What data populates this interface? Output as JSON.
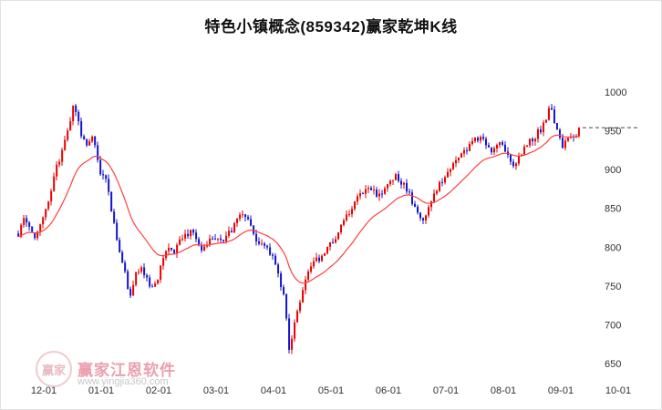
{
  "title": "特色小镇概念(859342)赢家乾坤K线",
  "watermark": {
    "logo_text": "赢家",
    "brand": "赢家江恩软件",
    "url": "www.yingjia360.com"
  },
  "colors": {
    "up": "#e80000",
    "down": "#1414cc",
    "ma": "#ff4040",
    "last_price_line": "#444444",
    "axis_text": "#333333"
  },
  "chart_data": {
    "type": "candlestick",
    "title": "特色小镇概念(859342)赢家乾坤K线",
    "y_ticks": [
      1000,
      950,
      900,
      850,
      800,
      750,
      700,
      650
    ],
    "ylim": [
      640,
      1010
    ],
    "x_ticks": [
      "12-01",
      "01-01",
      "02-01",
      "03-01",
      "04-01",
      "05-01",
      "06-01",
      "07-01",
      "08-01",
      "09-01",
      "10-01"
    ],
    "y_axis_side": "right",
    "grid": false,
    "last_price": 955,
    "ma_period_days": 20,
    "close_path_anchors": [
      [
        "11-18",
        818
      ],
      [
        "11-21",
        842
      ],
      [
        "11-24",
        828
      ],
      [
        "11-27",
        812
      ],
      [
        "11-30",
        832
      ],
      [
        "12-03",
        858
      ],
      [
        "12-06",
        886
      ],
      [
        "12-09",
        912
      ],
      [
        "12-12",
        936
      ],
      [
        "12-15",
        962
      ],
      [
        "12-17",
        988
      ],
      [
        "12-19",
        968
      ],
      [
        "12-21",
        942
      ],
      [
        "12-24",
        928
      ],
      [
        "12-27",
        944
      ],
      [
        "12-30",
        912
      ],
      [
        "01-01",
        884
      ],
      [
        "01-03",
        898
      ],
      [
        "01-05",
        868
      ],
      [
        "01-08",
        828
      ],
      [
        "01-11",
        792
      ],
      [
        "01-14",
        762
      ],
      [
        "01-16",
        736
      ],
      [
        "01-19",
        762
      ],
      [
        "01-22",
        776
      ],
      [
        "01-25",
        758
      ],
      [
        "01-28",
        748
      ],
      [
        "01-31",
        758
      ],
      [
        "02-03",
        782
      ],
      [
        "02-06",
        802
      ],
      [
        "02-09",
        794
      ],
      [
        "02-12",
        806
      ],
      [
        "02-15",
        814
      ],
      [
        "02-18",
        822
      ],
      [
        "02-21",
        806
      ],
      [
        "02-24",
        798
      ],
      [
        "02-27",
        808
      ],
      [
        "03-02",
        814
      ],
      [
        "03-05",
        808
      ],
      [
        "03-08",
        818
      ],
      [
        "03-11",
        828
      ],
      [
        "03-14",
        844
      ],
      [
        "03-17",
        836
      ],
      [
        "03-20",
        824
      ],
      [
        "03-23",
        806
      ],
      [
        "03-26",
        800
      ],
      [
        "03-29",
        794
      ],
      [
        "04-01",
        786
      ],
      [
        "04-04",
        758
      ],
      [
        "04-07",
        736
      ],
      [
        "04-09",
        668
      ],
      [
        "04-11",
        688
      ],
      [
        "04-14",
        722
      ],
      [
        "04-17",
        752
      ],
      [
        "04-20",
        772
      ],
      [
        "04-23",
        782
      ],
      [
        "04-26",
        788
      ],
      [
        "04-29",
        794
      ],
      [
        "05-02",
        808
      ],
      [
        "05-05",
        822
      ],
      [
        "05-08",
        838
      ],
      [
        "05-11",
        848
      ],
      [
        "05-14",
        860
      ],
      [
        "05-17",
        870
      ],
      [
        "05-20",
        880
      ],
      [
        "05-23",
        872
      ],
      [
        "05-26",
        864
      ],
      [
        "05-29",
        874
      ],
      [
        "06-01",
        884
      ],
      [
        "06-04",
        892
      ],
      [
        "06-07",
        886
      ],
      [
        "06-10",
        878
      ],
      [
        "06-13",
        862
      ],
      [
        "06-16",
        846
      ],
      [
        "06-19",
        832
      ],
      [
        "06-22",
        848
      ],
      [
        "06-25",
        866
      ],
      [
        "06-28",
        880
      ],
      [
        "07-01",
        892
      ],
      [
        "07-04",
        902
      ],
      [
        "07-07",
        912
      ],
      [
        "07-10",
        920
      ],
      [
        "07-13",
        928
      ],
      [
        "07-16",
        938
      ],
      [
        "07-19",
        944
      ],
      [
        "07-22",
        936
      ],
      [
        "07-25",
        926
      ],
      [
        "07-28",
        930
      ],
      [
        "07-31",
        936
      ],
      [
        "08-03",
        920
      ],
      [
        "08-06",
        906
      ],
      [
        "08-09",
        914
      ],
      [
        "08-12",
        926
      ],
      [
        "08-15",
        936
      ],
      [
        "08-18",
        944
      ],
      [
        "08-21",
        952
      ],
      [
        "08-24",
        962
      ],
      [
        "08-26",
        986
      ],
      [
        "08-28",
        958
      ],
      [
        "08-31",
        938
      ],
      [
        "09-02",
        926
      ],
      [
        "09-04",
        936
      ],
      [
        "09-06",
        944
      ],
      [
        "09-08",
        940
      ],
      [
        "09-10",
        948
      ],
      [
        "09-12",
        956
      ]
    ]
  }
}
